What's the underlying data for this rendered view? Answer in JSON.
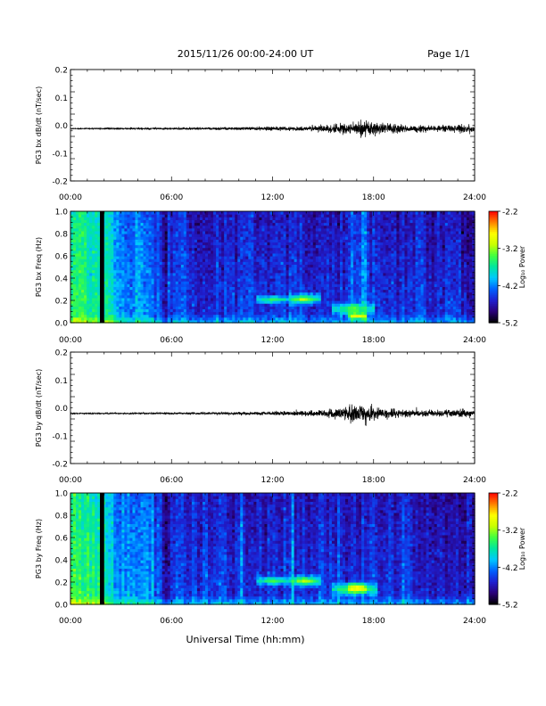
{
  "header": {
    "title": "2015/11/26  00:00-24:00 UT",
    "page_label": "Page 1/1"
  },
  "xlabel": "Universal Time (hh:mm)",
  "colors": {
    "colormap": [
      "#000000",
      "#2a0078",
      "#1f1fd0",
      "#0060ff",
      "#00c8ff",
      "#00e6a0",
      "#40ff40",
      "#c8ff00",
      "#ffff00",
      "#ff8000",
      "#ff0000"
    ],
    "trace": "#000000",
    "gap": "#000000"
  },
  "chart_data": [
    {
      "type": "line",
      "ylabel": "PG3 bx dB/dt (nT/sec)",
      "x_ticks": [
        "00:00",
        "06:00",
        "12:00",
        "18:00",
        "24:00"
      ],
      "y_ticks": [
        "0.2",
        "0.1",
        "0.0",
        "-0.1",
        "-0.2"
      ],
      "xlim": [
        0,
        24
      ],
      "ylim": [
        -0.2,
        0.2
      ],
      "baseline": -0.012,
      "amplitude_envelope": [
        {
          "x": 0,
          "a": 0.002
        },
        {
          "x": 6,
          "a": 0.003
        },
        {
          "x": 9,
          "a": 0.004
        },
        {
          "x": 12,
          "a": 0.006
        },
        {
          "x": 14,
          "a": 0.008
        },
        {
          "x": 15,
          "a": 0.012
        },
        {
          "x": 16,
          "a": 0.018
        },
        {
          "x": 17.3,
          "a": 0.03
        },
        {
          "x": 18.5,
          "a": 0.018
        },
        {
          "x": 20,
          "a": 0.012
        },
        {
          "x": 22,
          "a": 0.01
        },
        {
          "x": 23.7,
          "a": 0.015
        },
        {
          "x": 24,
          "a": 0.006
        }
      ]
    },
    {
      "type": "heatmap",
      "ylabel": "PG3 bx Freq (Hz)",
      "x_ticks": [
        "00:00",
        "06:00",
        "12:00",
        "18:00",
        "24:00"
      ],
      "y_ticks": [
        "1.0",
        "0.8",
        "0.6",
        "0.4",
        "0.2",
        "0.0"
      ],
      "xlim": [
        0,
        24
      ],
      "ylim": [
        0,
        1
      ],
      "colorbar": {
        "label": "Log₁₀ Power",
        "ticks": [
          "-2.2",
          "-3.2",
          "-4.2",
          "-5.2"
        ],
        "range": [
          -5.2,
          -2.2
        ]
      },
      "data_gap_hours": [
        1.75,
        2.0
      ],
      "enhancements": [
        {
          "t": [
            11.0,
            13.0
          ],
          "f": [
            0.16,
            0.26
          ],
          "level": -3.4
        },
        {
          "t": [
            13.0,
            14.8
          ],
          "f": [
            0.15,
            0.28
          ],
          "level": -3.0
        },
        {
          "t": [
            15.5,
            18.0
          ],
          "f": [
            0.05,
            0.2
          ],
          "level": -3.2
        },
        {
          "t": [
            16.5,
            17.6
          ],
          "f": [
            0.03,
            0.1
          ],
          "level": -2.6
        }
      ]
    },
    {
      "type": "line",
      "ylabel": "PG3 by dB/dt (nT/sec)",
      "x_ticks": [
        "00:00",
        "06:00",
        "12:00",
        "18:00",
        "24:00"
      ],
      "y_ticks": [
        "0.2",
        "0.1",
        "0.0",
        "-0.1",
        "-0.2"
      ],
      "xlim": [
        0,
        24
      ],
      "ylim": [
        -0.2,
        0.2
      ],
      "baseline": -0.02,
      "amplitude_envelope": [
        {
          "x": 0,
          "a": 0.002
        },
        {
          "x": 6,
          "a": 0.003
        },
        {
          "x": 9,
          "a": 0.004
        },
        {
          "x": 12,
          "a": 0.006
        },
        {
          "x": 14,
          "a": 0.008
        },
        {
          "x": 15,
          "a": 0.012
        },
        {
          "x": 16,
          "a": 0.02
        },
        {
          "x": 17.0,
          "a": 0.032
        },
        {
          "x": 18.5,
          "a": 0.018
        },
        {
          "x": 20,
          "a": 0.012
        },
        {
          "x": 22,
          "a": 0.01
        },
        {
          "x": 23.7,
          "a": 0.014
        },
        {
          "x": 24,
          "a": 0.006
        }
      ]
    },
    {
      "type": "heatmap",
      "ylabel": "PG3 by Freq (Hz)",
      "x_ticks": [
        "00:00",
        "06:00",
        "12:00",
        "18:00",
        "24:00"
      ],
      "y_ticks": [
        "1.0",
        "0.8",
        "0.6",
        "0.4",
        "0.2",
        "0.0"
      ],
      "xlim": [
        0,
        24
      ],
      "ylim": [
        0,
        1
      ],
      "colorbar": {
        "label": "Log₁₀ Power",
        "ticks": [
          "-2.2",
          "-3.2",
          "-4.2",
          "-5.2"
        ],
        "range": [
          -5.2,
          -2.2
        ]
      },
      "data_gap_hours": [
        1.75,
        2.0
      ],
      "enhancements": [
        {
          "t": [
            11.0,
            13.0
          ],
          "f": [
            0.16,
            0.27
          ],
          "level": -3.3
        },
        {
          "t": [
            13.0,
            14.8
          ],
          "f": [
            0.15,
            0.28
          ],
          "level": -3.0
        },
        {
          "t": [
            15.5,
            18.2
          ],
          "f": [
            0.06,
            0.22
          ],
          "level": -3.1
        },
        {
          "t": [
            16.5,
            17.6
          ],
          "f": [
            0.1,
            0.2
          ],
          "level": -2.7
        }
      ]
    }
  ]
}
